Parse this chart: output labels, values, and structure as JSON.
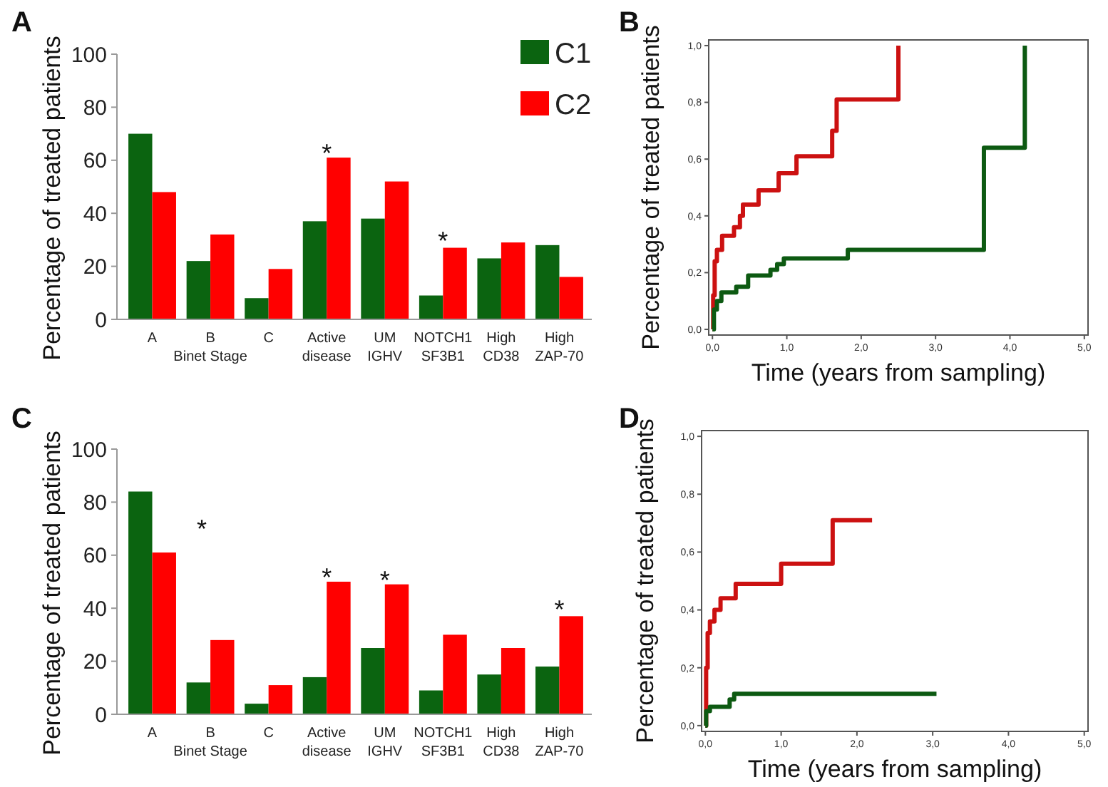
{
  "chart_data": [
    {
      "type": "bar",
      "title": "A",
      "ylabel": "Percentage of treated patients",
      "categories": [
        "A",
        "B",
        "C",
        "Active disease",
        "UM IGHV",
        "NOTCH1 SF3B1",
        "High CD38",
        "High ZAP-70"
      ],
      "series": [
        {
          "name": "C1",
          "color": "#0b6410",
          "values": [
            70,
            22,
            8,
            37,
            38,
            9,
            23,
            28
          ]
        },
        {
          "name": "C2",
          "color": "#ff0000",
          "values": [
            48,
            32,
            19,
            61,
            52,
            27,
            29,
            16
          ]
        }
      ],
      "ylim": [
        0,
        100
      ],
      "yticks": [
        0,
        20,
        40,
        60,
        80,
        100
      ],
      "legend": "top right",
      "annotations": [
        "Binet Stage",
        {
          "text": "*",
          "x": "Active disease",
          "y": 62
        },
        {
          "text": "*",
          "x": "NOTCH1 SF3B1",
          "y": 29
        }
      ]
    },
    {
      "type": "step",
      "title": "B",
      "ylabel": "Percentage of treated patients",
      "xlabel": "Time (years from sampling)",
      "series": [
        {
          "color": "#cc1111",
          "x": [
            0,
            0.01,
            0.03,
            0.06,
            0.13,
            0.29,
            0.37,
            0.41,
            0.62,
            0.89,
            1.13,
            1.61,
            1.67,
            2.5
          ],
          "values": [
            0,
            0.12,
            0.24,
            0.28,
            0.33,
            0.36,
            0.4,
            0.44,
            0.49,
            0.55,
            0.61,
            0.7,
            0.81,
            1.0
          ]
        },
        {
          "color": "#0d5a12",
          "x": [
            0,
            0.02,
            0.06,
            0.12,
            0.32,
            0.48,
            0.78,
            0.87,
            0.96,
            1.82,
            3.65,
            4.2
          ],
          "values": [
            0,
            0.07,
            0.1,
            0.13,
            0.15,
            0.19,
            0.21,
            0.23,
            0.25,
            0.28,
            0.64,
            1.0
          ]
        }
      ],
      "xlim": [
        -0.05,
        5.05
      ],
      "ylim": [
        -0.02,
        1.02
      ],
      "xticks": [
        {
          "value": 0,
          "label": "0,0"
        },
        {
          "value": 1,
          "label": "1,0"
        },
        {
          "value": 2,
          "label": "2,0"
        },
        {
          "value": 3,
          "label": "3,0"
        },
        {
          "value": 4,
          "label": "4,0"
        },
        {
          "value": 5,
          "label": "5,0"
        }
      ],
      "yticks": [
        {
          "value": 0,
          "label": "0,0"
        },
        {
          "value": 0.2,
          "label": "0,2"
        },
        {
          "value": 0.4,
          "label": "0,4"
        },
        {
          "value": 0.6,
          "label": "0,6"
        },
        {
          "value": 0.8,
          "label": "0,8"
        },
        {
          "value": 1,
          "label": "1,0"
        }
      ]
    },
    {
      "type": "bar",
      "title": "C",
      "ylabel": "Percentage of treated patients",
      "categories": [
        "A",
        "B",
        "C",
        "Active disease",
        "UM IGHV",
        "NOTCH1 SF3B1",
        "High CD38",
        "High ZAP-70"
      ],
      "series": [
        {
          "color": "#0b6410",
          "values": [
            84,
            12,
            4,
            14,
            25,
            9,
            15,
            18
          ]
        },
        {
          "color": "#ff0000",
          "values": [
            61,
            28,
            11,
            50,
            49,
            30,
            25,
            37
          ]
        }
      ],
      "ylim": [
        0,
        100
      ],
      "yticks": [
        0,
        20,
        40,
        60,
        80,
        100
      ],
      "annotations": [
        "Binet Stage",
        "*",
        {
          "text": "*",
          "x": "Active disease",
          "y": 51
        },
        {
          "text": "*",
          "x": "UM IGHV",
          "y": 50
        },
        {
          "text": "*",
          "x": "High ZAP-70",
          "y": 39
        }
      ]
    },
    {
      "type": "step",
      "title": "D",
      "ylabel": "Percentage of treated patients",
      "xlabel": "Time (years from sampling)",
      "series": [
        {
          "color": "#cc1111",
          "x": [
            0,
            0.01,
            0.03,
            0.06,
            0.12,
            0.2,
            0.4,
            1.0,
            1.68,
            2.2
          ],
          "values": [
            0,
            0.2,
            0.32,
            0.36,
            0.4,
            0.44,
            0.49,
            0.56,
            0.71,
            0.71
          ]
        },
        {
          "color": "#0d5a12",
          "x": [
            0,
            0.01,
            0.06,
            0.32,
            0.38,
            3.05
          ],
          "values": [
            0,
            0.05,
            0.065,
            0.09,
            0.11,
            0.11
          ]
        }
      ],
      "xlim": [
        -0.05,
        5.05
      ],
      "ylim": [
        -0.02,
        1.02
      ],
      "xticks": [
        {
          "value": 0,
          "label": "0,0"
        },
        {
          "value": 1,
          "label": "1,0"
        },
        {
          "value": 2,
          "label": "2,0"
        },
        {
          "value": 3,
          "label": "3,0"
        },
        {
          "value": 4,
          "label": "4,0"
        },
        {
          "value": 5,
          "label": "5,0"
        }
      ],
      "yticks": [
        {
          "value": 0,
          "label": "0,0"
        },
        {
          "value": 0.2,
          "label": "0,2"
        },
        {
          "value": 0.4,
          "label": "0,4"
        },
        {
          "value": 0.6,
          "label": "0,6"
        },
        {
          "value": 0.8,
          "label": "0,8"
        },
        {
          "value": 1,
          "label": "1,0"
        }
      ]
    }
  ]
}
